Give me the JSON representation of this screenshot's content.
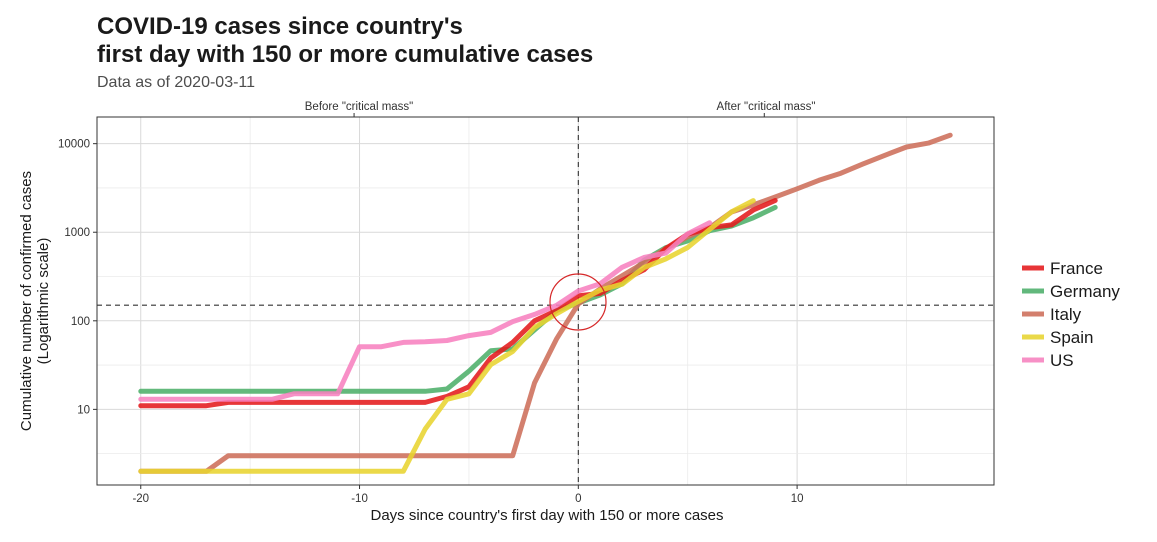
{
  "chart_data": {
    "type": "line",
    "title_line1": "COVID-19 cases since country's",
    "title_line2": "first day with 150 or more cumulative cases",
    "subtitle": "Data as of 2020-03-11",
    "xlabel": "Days since country's first day with 150 or more cases",
    "ylabel_line1": "Cumulative number of confirmed cases",
    "ylabel_line2": "(Logarithmic scale)",
    "secondary_labels": {
      "before": "Before \"critical mass\"",
      "after": "After \"critical mass\""
    },
    "y_scale": "log10",
    "xlim": [
      -22,
      19
    ],
    "ylim": [
      1.4,
      20000
    ],
    "x_ticks": [
      -20,
      -10,
      0,
      10
    ],
    "x_tick_labels": [
      "-20",
      "-10",
      "0",
      "10"
    ],
    "y_ticks": [
      10,
      100,
      1000,
      10000
    ],
    "y_tick_labels": [
      "10",
      "100",
      "1000",
      "10000"
    ],
    "threshold": 150,
    "grid": true,
    "legend_position": "right",
    "series": [
      {
        "name": "Germany",
        "color": "#4DAF6A",
        "x": [
          -20,
          -19,
          -18,
          -17,
          -16,
          -15,
          -14,
          -13,
          -12,
          -11,
          -10,
          -9,
          -8,
          -7,
          -6,
          -5,
          -4,
          -3,
          -2,
          -1,
          0,
          1,
          2,
          3,
          4,
          5,
          6,
          7,
          8,
          9
        ],
        "y": [
          16,
          16,
          16,
          16,
          16,
          16,
          16,
          16,
          16,
          16,
          16,
          16,
          16,
          16,
          17,
          27,
          46,
          48,
          79,
          130,
          159,
          196,
          262,
          482,
          670,
          799,
          1040,
          1176,
          1457,
          1908
        ]
      },
      {
        "name": "Italy",
        "color": "#CD6E5A",
        "x": [
          -20,
          -19,
          -18,
          -17,
          -16,
          -15,
          -14,
          -13,
          -12,
          -11,
          -10,
          -9,
          -8,
          -7,
          -6,
          -5,
          -4,
          -3,
          -2,
          -1,
          0,
          1,
          2,
          3,
          4,
          5,
          6,
          7,
          8,
          9,
          10,
          11,
          12,
          13,
          14,
          15,
          16,
          17
        ],
        "y": [
          2,
          2,
          2,
          2,
          3,
          3,
          3,
          3,
          3,
          3,
          3,
          3,
          3,
          3,
          3,
          3,
          3,
          3,
          20,
          62,
          155,
          229,
          322,
          453,
          655,
          888,
          1128,
          1694,
          2036,
          2502,
          3089,
          3858,
          4636,
          5883,
          7375,
          9172,
          10149,
          12462
        ]
      },
      {
        "name": "France",
        "color": "#E41A1C",
        "x": [
          -20,
          -19,
          -18,
          -17,
          -16,
          -15,
          -14,
          -13,
          -12,
          -11,
          -10,
          -9,
          -8,
          -7,
          -6,
          -5,
          -4,
          -3,
          -2,
          -1,
          0,
          1,
          2,
          3,
          4,
          5,
          6,
          7,
          8,
          9
        ],
        "y": [
          11,
          11,
          11,
          11,
          12,
          12,
          12,
          12,
          12,
          12,
          12,
          12,
          12,
          12,
          14,
          18,
          38,
          57,
          100,
          130,
          191,
          204,
          285,
          377,
          653,
          949,
          1126,
          1209,
          1784,
          2281
        ]
      },
      {
        "name": "Spain",
        "color": "#E8D430",
        "x": [
          -20,
          -19,
          -18,
          -17,
          -16,
          -15,
          -14,
          -13,
          -12,
          -11,
          -10,
          -9,
          -8,
          -7,
          -6,
          -5,
          -4,
          -3,
          -2,
          -1,
          0,
          1,
          2,
          3,
          4,
          5,
          6,
          7,
          8
        ],
        "y": [
          2,
          2,
          2,
          2,
          2,
          2,
          2,
          2,
          2,
          2,
          2,
          2,
          2,
          6,
          13,
          15,
          32,
          45,
          84,
          120,
          165,
          222,
          259,
          400,
          500,
          673,
          1073,
          1695,
          2277
        ]
      },
      {
        "name": "US",
        "color": "#F781BF",
        "x": [
          -20,
          -19,
          -18,
          -17,
          -16,
          -15,
          -14,
          -13,
          -12,
          -11,
          -10,
          -9,
          -8,
          -7,
          -6,
          -5,
          -4,
          -3,
          -2,
          -1,
          0,
          1,
          2,
          3,
          4,
          5,
          6
        ],
        "y": [
          13,
          13,
          13,
          13,
          13,
          13,
          13,
          15,
          15,
          15,
          51,
          51,
          57,
          58,
          60,
          68,
          74,
          98,
          118,
          149,
          217,
          262,
          402,
          518,
          583,
          959,
          1281
        ]
      }
    ],
    "legend_order": [
      "France",
      "Germany",
      "Italy",
      "Spain",
      "US"
    ]
  }
}
